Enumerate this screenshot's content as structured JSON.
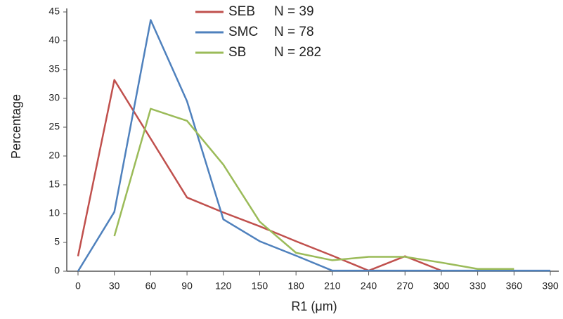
{
  "chart_data": {
    "type": "line",
    "x_label": "R1 (μm)",
    "y_label": "Percentage",
    "x": [
      0,
      30,
      60,
      90,
      120,
      150,
      180,
      210,
      240,
      270,
      300,
      330,
      360,
      390
    ],
    "series": [
      {
        "name": "SEB",
        "legend_note": "N = 39",
        "color": "#c0504d",
        "values": [
          2.6,
          33.2,
          23,
          12.8,
          10.2,
          7.8,
          5.2,
          2.7,
          0.1,
          2.6,
          0.1,
          null,
          null,
          null
        ]
      },
      {
        "name": "SMC",
        "legend_note": "N = 78",
        "color": "#4f81bd",
        "values": [
          0,
          10.3,
          43.6,
          29.5,
          9,
          5.2,
          2.7,
          0.1,
          0.1,
          0.1,
          0.1,
          0.1,
          0.1,
          0.1
        ]
      },
      {
        "name": "SB",
        "legend_note": "N = 282",
        "color": "#9bbb59",
        "values": [
          null,
          6.1,
          28.2,
          26.1,
          18.5,
          8.6,
          3.2,
          1.9,
          2.5,
          2.5,
          1.5,
          0.4,
          0.4,
          null
        ]
      }
    ],
    "xlim": [
      0,
      390
    ],
    "xticks": [
      0,
      30,
      60,
      90,
      120,
      150,
      180,
      210,
      240,
      270,
      300,
      330,
      360,
      390
    ],
    "ylim": [
      0,
      45
    ],
    "yticks": [
      0,
      5,
      10,
      15,
      20,
      25,
      30,
      35,
      40,
      45
    ],
    "grid": false
  }
}
